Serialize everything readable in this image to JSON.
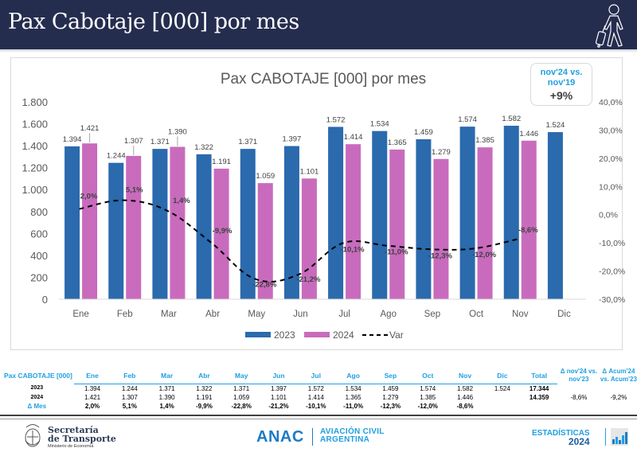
{
  "header": {
    "title": "Pax Cabotaje [000] por mes",
    "icon": "traveler-with-luggage-icon"
  },
  "badge": {
    "line1": "nov'24 vs.",
    "line2": "nov'19",
    "value": "+9%"
  },
  "chart_data": {
    "type": "bar",
    "title": "Pax CABOTAJE [000] por mes",
    "categories": [
      "Ene",
      "Feb",
      "Mar",
      "Abr",
      "May",
      "Jun",
      "Jul",
      "Ago",
      "Sep",
      "Oct",
      "Nov",
      "Dic"
    ],
    "series": [
      {
        "name": "2023",
        "type": "bar",
        "color": "#2a6aad",
        "values": [
          1394,
          1244,
          1371,
          1322,
          1371,
          1397,
          1572,
          1534,
          1459,
          1574,
          1582,
          1524
        ],
        "labels": [
          "1.394",
          "1.244",
          "1.371",
          "1.322",
          "1.371",
          "1.397",
          "1.572",
          "1.534",
          "1.459",
          "1.574",
          "1.582",
          "1.524"
        ]
      },
      {
        "name": "2024",
        "type": "bar",
        "color": "#c96bbd",
        "values": [
          1421,
          1307,
          1390,
          1191,
          1059,
          1101,
          1414,
          1365,
          1279,
          1385,
          1446,
          null
        ],
        "labels": [
          "1.421",
          "1.307",
          "1.390",
          "1.191",
          "1.059",
          "1.101",
          "1.414",
          "1.365",
          "1.279",
          "1.385",
          "1.446",
          ""
        ]
      },
      {
        "name": "Var",
        "type": "line",
        "style": "dashed",
        "color": "#000000",
        "axis": "right",
        "values": [
          2.0,
          5.1,
          1.4,
          -9.9,
          -22.8,
          -21.2,
          -10.1,
          -11.0,
          -12.3,
          -12.0,
          -8.6,
          null
        ],
        "labels": [
          "2,0%",
          "5,1%",
          "1,4%",
          "-9,9%",
          "-22,8%",
          "-21,2%",
          "-10,1%",
          "-11,0%",
          "-12,3%",
          "-12,0%",
          "-8,6%",
          ""
        ]
      }
    ],
    "y_left": {
      "ylim": [
        0,
        1800
      ],
      "ticks": [
        0,
        200,
        400,
        600,
        800,
        1000,
        1200,
        1400,
        1600,
        1800
      ],
      "tick_labels": [
        "0",
        "200",
        "400",
        "600",
        "800",
        "1.000",
        "1.200",
        "1.400",
        "1.600",
        "1.800"
      ]
    },
    "y_right": {
      "ylim": [
        -30,
        40
      ],
      "ticks": [
        -30,
        -20,
        -10,
        0,
        10,
        20,
        30,
        40
      ],
      "tick_labels": [
        "-30,0%",
        "-20,0%",
        "-10,0%",
        "0,0%",
        "10,0%",
        "20,0%",
        "30,0%",
        "40,0%"
      ]
    },
    "xlabel": "",
    "ylabel": "",
    "grid": false,
    "legend": {
      "position": "bottom",
      "entries": [
        "2023",
        "2024",
        "Var"
      ]
    }
  },
  "table": {
    "header_label": "Pax CABOTAJE [000]",
    "months": [
      "Ene",
      "Feb",
      "Mar",
      "Abr",
      "May",
      "Jun",
      "Jul",
      "Ago",
      "Sep",
      "Oct",
      "Nov",
      "Dic"
    ],
    "total_label": "Total",
    "delta_month_label_1": "Δ nov'24 vs.",
    "delta_month_label_2": "nov'23",
    "delta_acum_label_1": "Δ Acum'24",
    "delta_acum_label_2": "vs. Acum'23",
    "rows": [
      {
        "label": "2023",
        "values": [
          "1.394",
          "1.244",
          "1.371",
          "1.322",
          "1.371",
          "1.397",
          "1.572",
          "1.534",
          "1.459",
          "1.574",
          "1.582",
          "1.524"
        ],
        "total": "17.344",
        "delta_month": "",
        "delta_acum": ""
      },
      {
        "label": "2024",
        "values": [
          "1.421",
          "1.307",
          "1.390",
          "1.191",
          "1.059",
          "1.101",
          "1.414",
          "1.365",
          "1.279",
          "1.385",
          "1.446",
          ""
        ],
        "total": "14.359",
        "delta_month": "-8,6%",
        "delta_acum": "-9,2%"
      },
      {
        "label": "Δ Mes",
        "values": [
          "2,0%",
          "5,1%",
          "1,4%",
          "-9,9%",
          "-22,8%",
          "-21,2%",
          "-10,1%",
          "-11,0%",
          "-12,3%",
          "-12,0%",
          "-8,6%",
          ""
        ],
        "total": "",
        "delta_month": "",
        "delta_acum": ""
      }
    ]
  },
  "footer": {
    "sec_line1": "Secretaría",
    "sec_line2": "de Transporte",
    "sec_line3": "Ministerio de Economía",
    "anac": "ANAC",
    "avc_line1": "AVIACIÓN CIVIL",
    "avc_line2": "ARGENTINA",
    "est_line1": "ESTADÍSTICAS",
    "est_line2": "2024"
  }
}
